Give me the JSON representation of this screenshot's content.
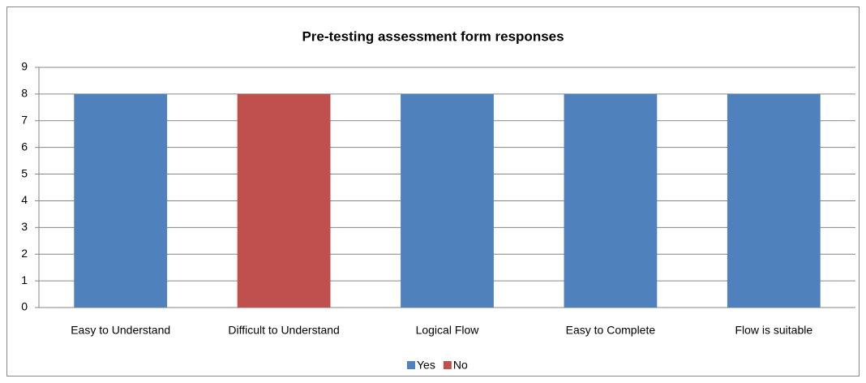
{
  "chart_data": {
    "type": "bar",
    "stacked": true,
    "title": "Pre-testing assessment form responses",
    "categories": [
      "Easy to Understand",
      "Difficult to Understand",
      "Logical Flow",
      "Easy to Complete",
      "Flow is suitable"
    ],
    "series": [
      {
        "name": "Yes",
        "color": "#4f81bd",
        "values": [
          8,
          null,
          8,
          8,
          8
        ]
      },
      {
        "name": "No",
        "color": "#c0504d",
        "values": [
          null,
          8,
          null,
          null,
          null
        ]
      }
    ],
    "ylim": [
      0,
      9
    ],
    "yticks": [
      0,
      1,
      2,
      3,
      4,
      5,
      6,
      7,
      8,
      9
    ],
    "grid": true,
    "legend": "bottom"
  }
}
